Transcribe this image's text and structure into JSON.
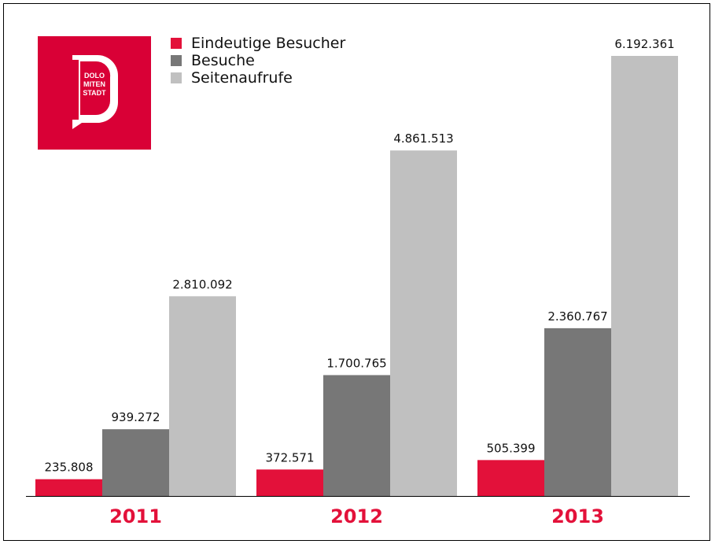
{
  "logo": {
    "text_lines": [
      "DOLO",
      "MITEN",
      "STADT"
    ],
    "color": "#d90036"
  },
  "chart_data": {
    "type": "bar",
    "categories": [
      "2011",
      "2012",
      "2013"
    ],
    "series": [
      {
        "name": "Eindeutige Besucher",
        "color": "#e3113a",
        "values": [
          235808,
          372571,
          505399
        ],
        "labels": [
          "235.808",
          "372.571",
          "505.399"
        ]
      },
      {
        "name": "Besuche",
        "color": "#777777",
        "values": [
          939272,
          1700765,
          2360767
        ],
        "labels": [
          "939.272",
          "1.700.765",
          "2.360.767"
        ]
      },
      {
        "name": "Seitenaufrufe",
        "color": "#c0c0c0",
        "values": [
          2810092,
          4861513,
          6192361
        ],
        "labels": [
          "2.810.092",
          "4.861.513",
          "6.192.361"
        ]
      }
    ],
    "category_label_color": "#e3113a",
    "legend_position": "top-left",
    "grid": false
  }
}
